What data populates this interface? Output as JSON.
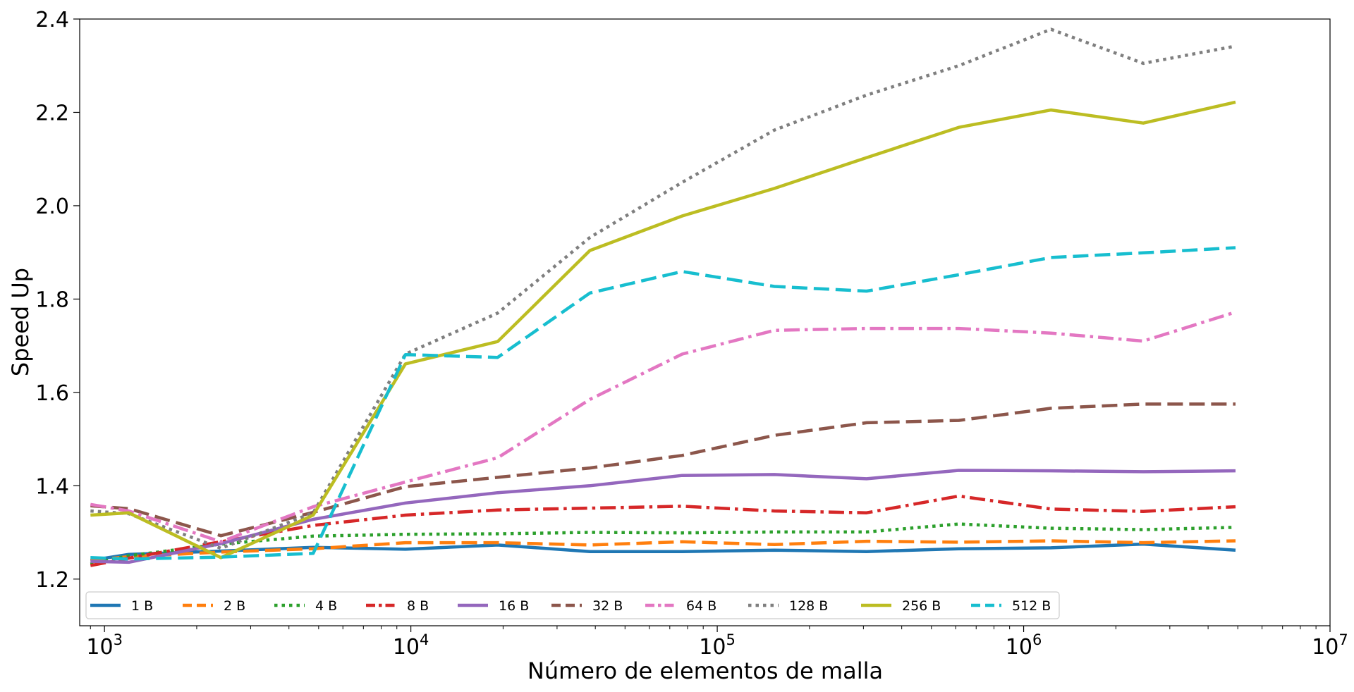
{
  "chart_data": {
    "type": "line",
    "title": "",
    "xlabel": "Número de elementos de malla",
    "ylabel": "Speed Up",
    "xscale": "log",
    "xlim": [
      830,
      10000000
    ],
    "ylim": [
      1.1,
      2.4
    ],
    "x_ticks": [
      {
        "value": 1000,
        "base": "10",
        "exp": "3"
      },
      {
        "value": 10000,
        "base": "10",
        "exp": "4"
      },
      {
        "value": 100000,
        "base": "10",
        "exp": "5"
      },
      {
        "value": 1000000,
        "base": "10",
        "exp": "6"
      },
      {
        "value": 10000000,
        "base": "10",
        "exp": "7"
      }
    ],
    "y_ticks": [
      "1.2",
      "1.4",
      "1.6",
      "1.8",
      "2.0",
      "2.2",
      "2.4"
    ],
    "grid": false,
    "legend_position": "lower-left",
    "x": [
      900,
      1200,
      2400,
      4800,
      9600,
      19200,
      38400,
      76800,
      153600,
      307200,
      614400,
      1228800,
      2457600,
      4915200
    ],
    "series": [
      {
        "name": "1 B",
        "color": "#1f77b4",
        "style": "solid",
        "values": [
          1.24,
          1.253,
          1.26,
          1.268,
          1.264,
          1.273,
          1.259,
          1.259,
          1.262,
          1.259,
          1.265,
          1.267,
          1.275,
          1.262
        ]
      },
      {
        "name": "2 B",
        "color": "#ff7f0e",
        "style": "dashed",
        "values": [
          1.24,
          1.248,
          1.258,
          1.265,
          1.278,
          1.278,
          1.273,
          1.28,
          1.274,
          1.281,
          1.279,
          1.282,
          1.278,
          1.282
        ]
      },
      {
        "name": "4 B",
        "color": "#2ca02c",
        "style": "dotted",
        "values": [
          1.232,
          1.25,
          1.275,
          1.292,
          1.296,
          1.297,
          1.3,
          1.299,
          1.301,
          1.301,
          1.318,
          1.309,
          1.306,
          1.311
        ]
      },
      {
        "name": "8 B",
        "color": "#d62728",
        "style": "dashdot",
        "values": [
          1.229,
          1.245,
          1.28,
          1.315,
          1.337,
          1.348,
          1.352,
          1.356,
          1.346,
          1.342,
          1.378,
          1.35,
          1.345,
          1.355
        ]
      },
      {
        "name": "16 B",
        "color": "#9467bd",
        "style": "solid",
        "values": [
          1.238,
          1.236,
          1.276,
          1.328,
          1.363,
          1.385,
          1.4,
          1.422,
          1.424,
          1.415,
          1.433,
          1.432,
          1.43,
          1.432
        ]
      },
      {
        "name": "32 B",
        "color": "#8c564b",
        "style": "dashed",
        "values": [
          1.357,
          1.351,
          1.293,
          1.343,
          1.398,
          1.418,
          1.438,
          1.465,
          1.508,
          1.535,
          1.54,
          1.566,
          1.575,
          1.575
        ]
      },
      {
        "name": "64 B",
        "color": "#e377c2",
        "style": "dashdot",
        "values": [
          1.36,
          1.346,
          1.28,
          1.355,
          1.408,
          1.46,
          1.585,
          1.682,
          1.733,
          1.737,
          1.737,
          1.727,
          1.71,
          1.772
        ]
      },
      {
        "name": "128 B",
        "color": "#7f7f7f",
        "style": "dotted",
        "values": [
          1.346,
          1.34,
          1.266,
          1.342,
          1.682,
          1.77,
          1.932,
          2.05,
          2.162,
          2.237,
          2.3,
          2.378,
          2.305,
          2.342
        ]
      },
      {
        "name": "256 B",
        "color": "#bcbd22",
        "style": "solid",
        "values": [
          1.337,
          1.342,
          1.246,
          1.337,
          1.661,
          1.709,
          1.904,
          1.978,
          2.037,
          2.103,
          2.168,
          2.205,
          2.177,
          2.222
        ]
      },
      {
        "name": "512 B",
        "color": "#17becf",
        "style": "dashed",
        "values": [
          1.246,
          1.243,
          1.247,
          1.255,
          1.681,
          1.675,
          1.813,
          1.859,
          1.827,
          1.817,
          1.852,
          1.889,
          1.899,
          1.91
        ]
      }
    ]
  }
}
